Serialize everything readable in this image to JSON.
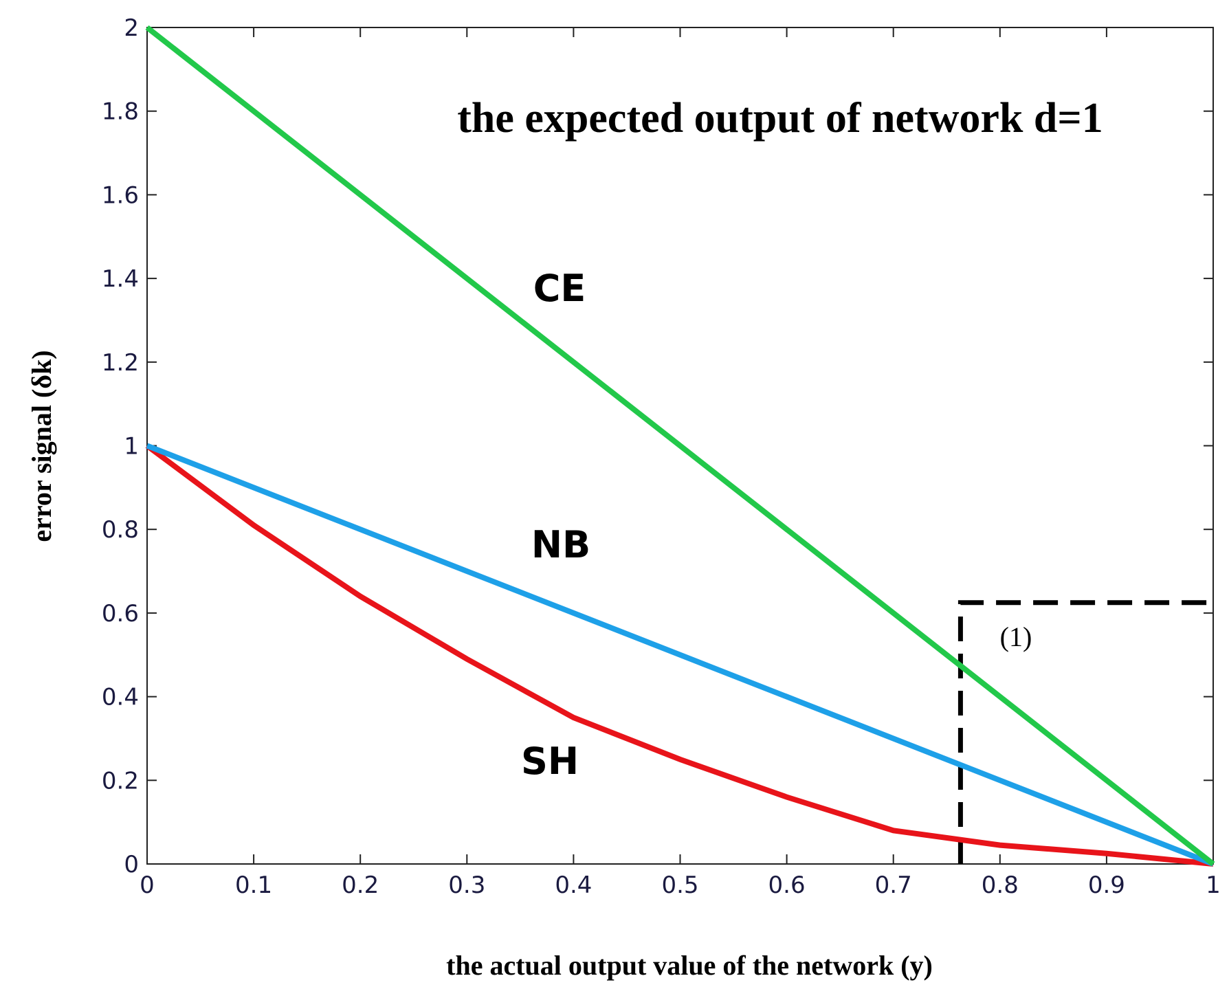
{
  "chart_data": {
    "type": "line",
    "title": "the expected output of network d=1",
    "xlabel": "the actual output value of the network (y)",
    "ylabel": "error signal (δk)",
    "annotations": [
      "(1)"
    ],
    "xlim": [
      0,
      1
    ],
    "ylim": [
      0,
      2
    ],
    "xticks": [
      0,
      0.1,
      0.2,
      0.3,
      0.4,
      0.5,
      0.6,
      0.7,
      0.8,
      0.9,
      1
    ],
    "yticks": [
      0,
      0.2,
      0.4,
      0.6,
      0.8,
      1,
      1.2,
      1.4,
      1.6,
      1.8,
      2
    ],
    "series": [
      {
        "name": "CE",
        "color": "#22c84a",
        "x": [
          0,
          1
        ],
        "values": [
          2,
          0
        ]
      },
      {
        "name": "NB",
        "color": "#1ea0e8",
        "x": [
          0,
          1
        ],
        "values": [
          1,
          0
        ]
      },
      {
        "name": "SH",
        "color": "#e8141a",
        "x": [
          0,
          0.1,
          0.2,
          0.3,
          0.4,
          0.5,
          0.6,
          0.7,
          0.8,
          0.9,
          1
        ],
        "values": [
          1,
          0.81,
          0.64,
          0.49,
          0.35,
          0.25,
          0.16,
          0.08,
          0.045,
          0.025,
          0
        ]
      },
      {
        "color": "#000000",
        "dashed": true,
        "x": [
          0.763,
          0.763,
          1
        ],
        "values": [
          0,
          0.625,
          0.625
        ]
      }
    ]
  }
}
